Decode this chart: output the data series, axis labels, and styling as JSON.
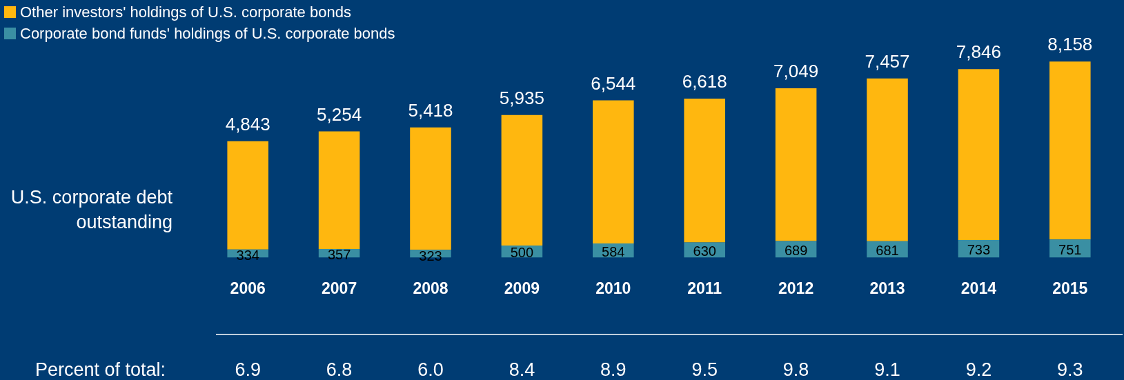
{
  "chart_data": {
    "type": "bar",
    "stacked": true,
    "ylabel": "U.S. corporate debt outstanding",
    "categories": [
      "2006",
      "2007",
      "2008",
      "2009",
      "2010",
      "2011",
      "2012",
      "2013",
      "2014",
      "2015"
    ],
    "series": [
      {
        "name": "Corporate bond funds' holdings of U.S. corporate bonds",
        "color": "#3a8fa3",
        "values": [
          334,
          357,
          323,
          500,
          584,
          630,
          689,
          681,
          733,
          751
        ],
        "value_labels": [
          "334",
          "357",
          "323",
          "500",
          "584",
          "630",
          "689",
          "681",
          "733",
          "751"
        ]
      },
      {
        "name": "Other investors' holdings of U.S. corporate bonds",
        "color": "#ffb70f",
        "values": [
          4509,
          4897,
          5095,
          5435,
          5960,
          5988,
          6360,
          6776,
          7113,
          7407
        ]
      }
    ],
    "totals": [
      "4,843",
      "5,254",
      "5,418",
      "5,935",
      "6,544",
      "6,618",
      "7,049",
      "7,457",
      "7,846",
      "8,158"
    ],
    "tick_labels": "x",
    "grid": false,
    "legend": "top left",
    "annotations": [
      "Percent of total:",
      "6.9",
      "6.8",
      "6.0",
      "8.4",
      "8.9",
      "9.5",
      "9.8",
      "9.1",
      "9.2",
      "9.3"
    ]
  }
}
